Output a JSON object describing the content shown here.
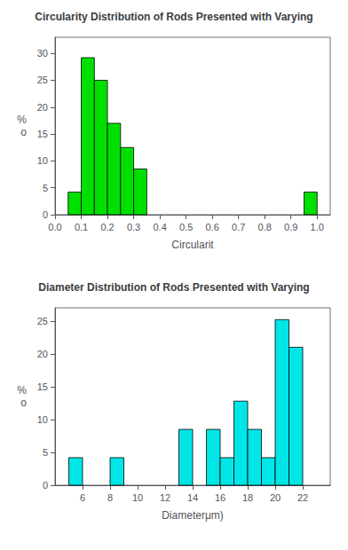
{
  "chart_data": [
    {
      "type": "bar",
      "title": "Circularity Distribution of Rods Presented with Varying",
      "xlabel": "Circularit",
      "ylabel": "%\no",
      "x": [
        0.05,
        0.1,
        0.15,
        0.2,
        0.25,
        0.3,
        0.95
      ],
      "values": [
        4.2,
        29.2,
        25.0,
        17.0,
        12.5,
        8.5,
        4.2
      ],
      "bin_width": 0.05,
      "color": "#00e000",
      "xlim": [
        0.0,
        1.05
      ],
      "ylim": [
        0,
        33
      ],
      "xticks": [
        {
          "value": 0,
          "label": "0.0"
        },
        0.1,
        0.2,
        0.3,
        0.4,
        0.5,
        0.6,
        0.7,
        0.8,
        0.9,
        {
          "value": 1,
          "label": "1.0"
        }
      ],
      "yticks": [
        0,
        5,
        10,
        15,
        20,
        25,
        30
      ],
      "grid": false
    },
    {
      "type": "bar",
      "title": "Diameter Distribution of Rods Presented with Varying",
      "xlabel": "Diameterμm)",
      "ylabel": "%\no",
      "x": [
        5,
        8,
        13,
        15,
        16,
        17,
        18,
        19,
        20,
        21
      ],
      "values": [
        4.2,
        4.2,
        8.5,
        8.5,
        4.2,
        12.8,
        8.5,
        4.2,
        25.2,
        21.0
      ],
      "bin_width": 1.0,
      "color": "#00e5e5",
      "xlim": [
        4,
        24
      ],
      "ylim": [
        0,
        27
      ],
      "xticks": [
        6,
        8,
        10,
        12,
        14,
        16,
        18,
        20,
        22
      ],
      "yticks": [
        0,
        5,
        10,
        15,
        20,
        25
      ],
      "grid": false
    }
  ]
}
